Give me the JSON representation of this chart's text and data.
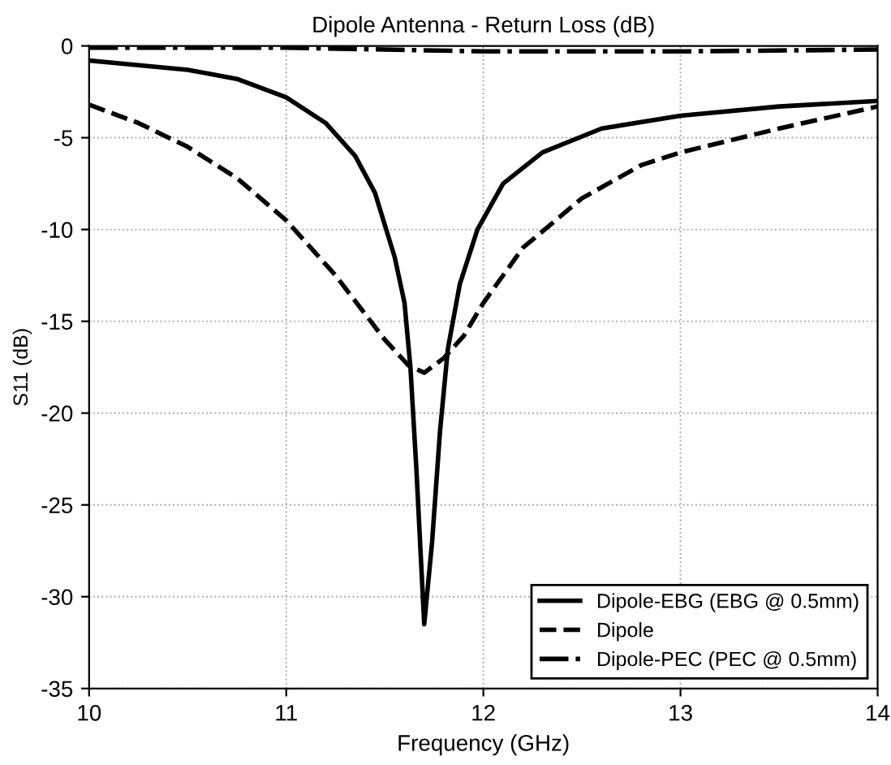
{
  "chart_data": {
    "type": "line",
    "title": "Dipole Antenna - Return Loss (dB)",
    "xlabel": "Frequency (GHz)",
    "ylabel": "S11 (dB)",
    "xlim": [
      10,
      14
    ],
    "ylim": [
      -35,
      0
    ],
    "xticks": [
      10,
      11,
      12,
      13,
      14
    ],
    "yticks": [
      -35,
      -30,
      -25,
      -20,
      -15,
      -10,
      -5,
      0
    ],
    "grid": true,
    "legend": "bottom right",
    "series": [
      {
        "name": "Dipole-EBG (EBG @ 0.5mm)",
        "color": "#000000",
        "line_style": "solid",
        "x": [
          10,
          10.5,
          10.75,
          11.0,
          11.2,
          11.35,
          11.45,
          11.55,
          11.6,
          11.63,
          11.66,
          11.7,
          11.74,
          11.78,
          11.82,
          11.88,
          11.97,
          12.1,
          12.3,
          12.6,
          13.0,
          13.5,
          14
        ],
        "values": [
          -0.8,
          -1.3,
          -1.8,
          -2.8,
          -4.2,
          -6,
          -8,
          -11.5,
          -14,
          -17.5,
          -23,
          -31.5,
          -27,
          -21,
          -16.5,
          -13,
          -10,
          -7.5,
          -5.8,
          -4.5,
          -3.8,
          -3.3,
          -3.0
        ]
      },
      {
        "name": "Dipole",
        "color": "#000000",
        "line_style": "dashed",
        "x": [
          10,
          10.25,
          10.5,
          10.75,
          11,
          11.25,
          11.5,
          11.62,
          11.7,
          11.8,
          11.9,
          12.0,
          12.2,
          12.5,
          12.8,
          13.0,
          13.5,
          14
        ],
        "values": [
          -3.2,
          -4.2,
          -5.5,
          -7.2,
          -9.5,
          -12.5,
          -16,
          -17.4,
          -17.8,
          -17,
          -15.8,
          -14,
          -11,
          -8.3,
          -6.5,
          -5.8,
          -4.5,
          -3.3
        ]
      },
      {
        "name": "Dipole-PEC (PEC @ 0.5mm)",
        "color": "#000000",
        "line_style": "dashdot",
        "x": [
          10,
          11,
          11.5,
          12,
          13,
          14
        ],
        "values": [
          -0.1,
          -0.1,
          -0.2,
          -0.3,
          -0.3,
          -0.2
        ]
      }
    ]
  }
}
